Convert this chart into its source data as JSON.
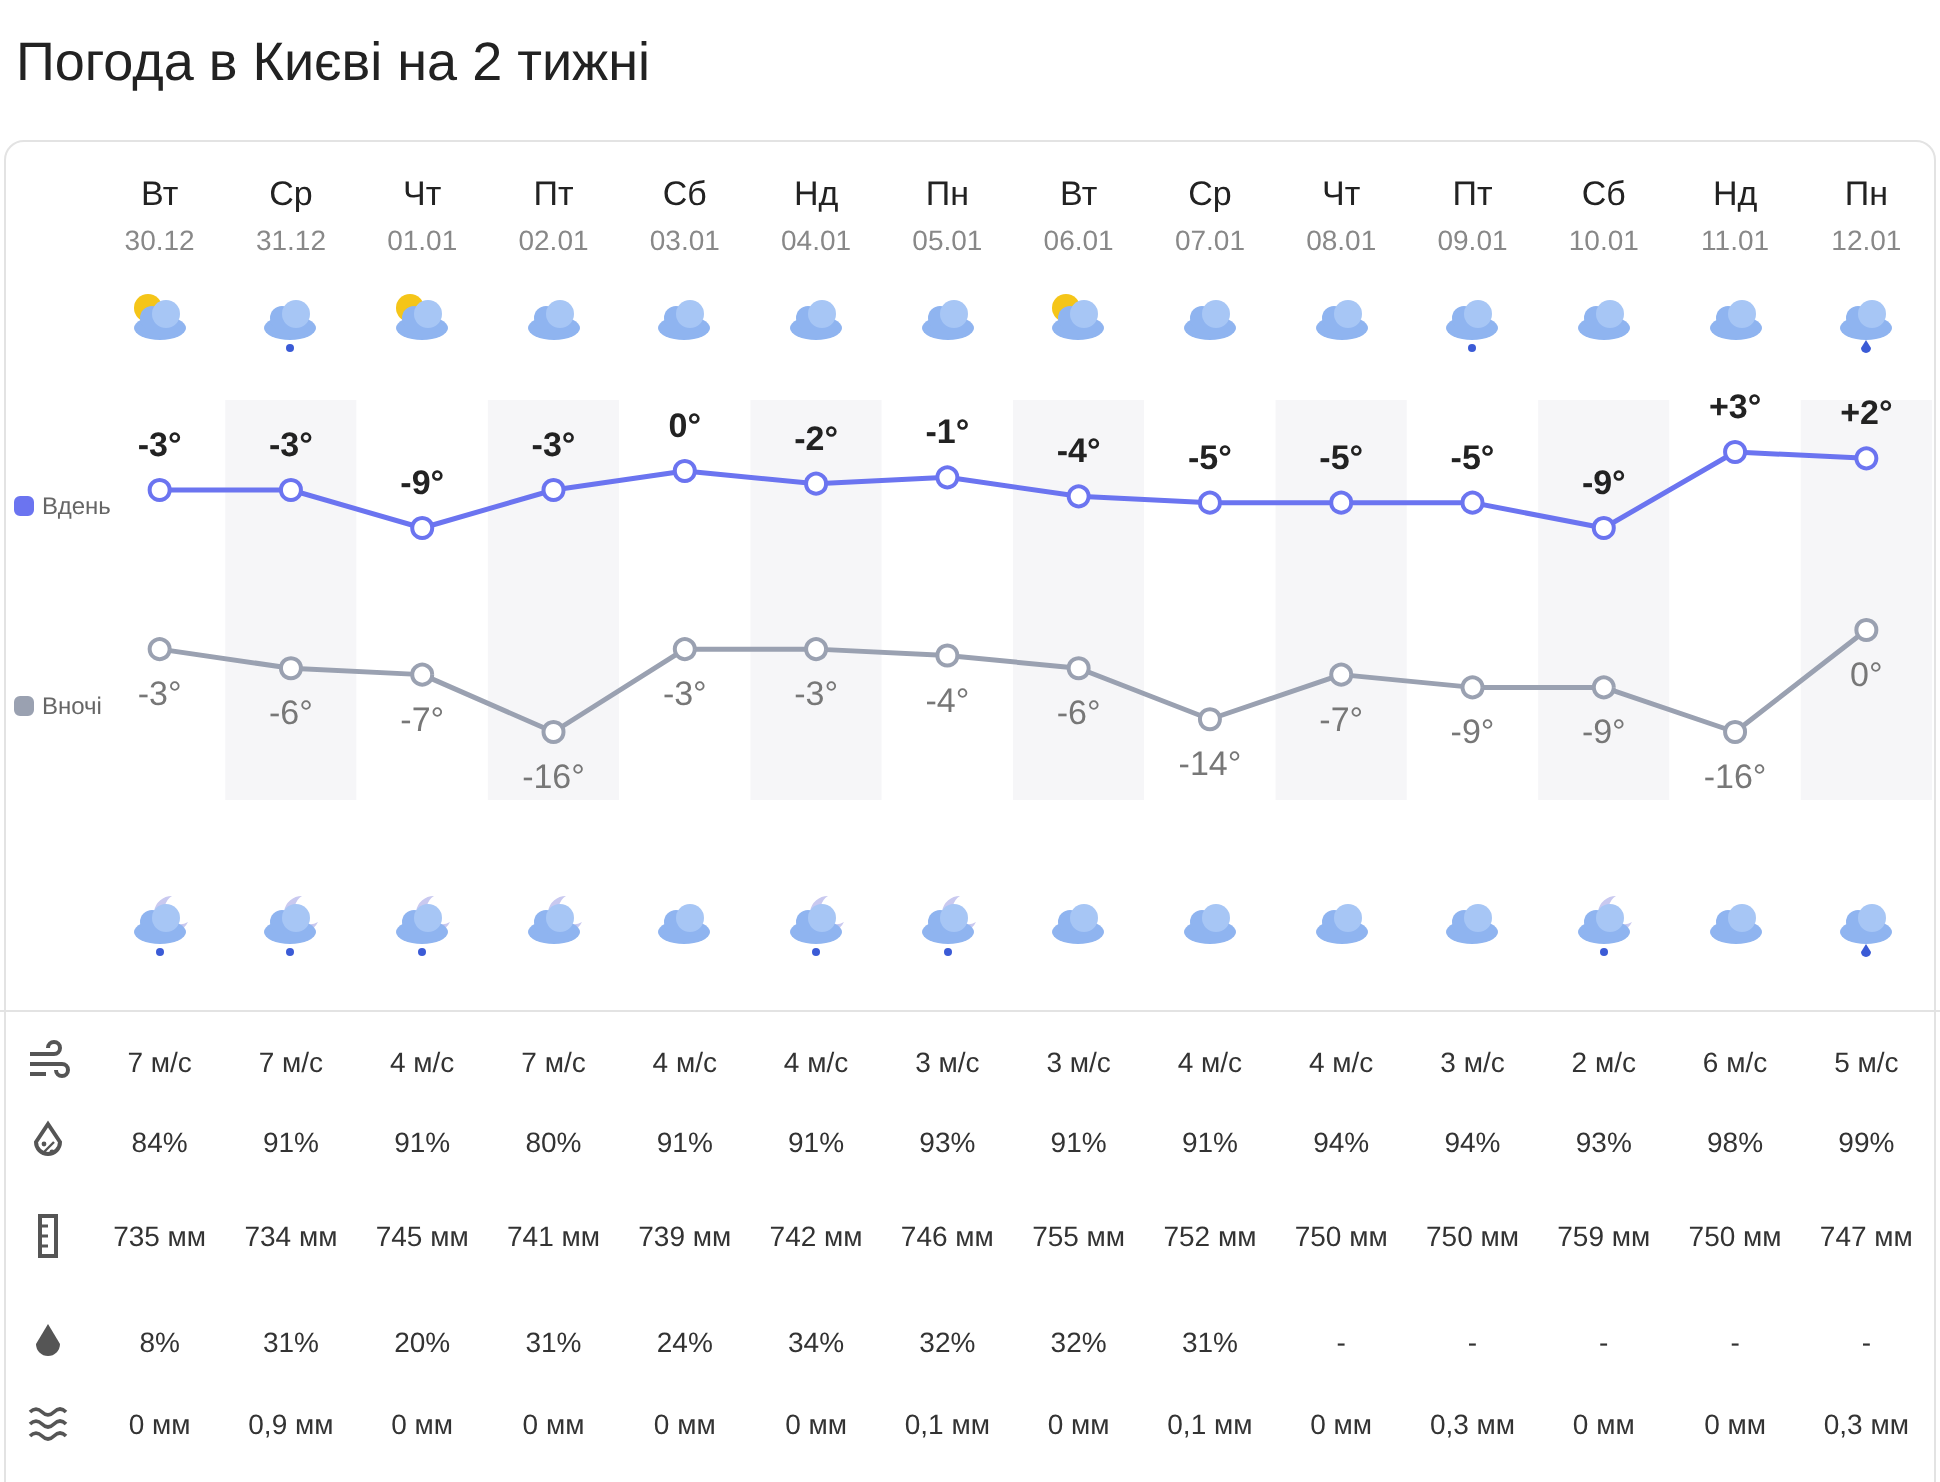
{
  "chart_data": [
    {
      "type": "line",
      "title": "Погода в Києві на 2 тижні",
      "categories": [
        "Вт\n30.12",
        "Ср\n31.12",
        "Чт\n01.01",
        "Пт\n02.01",
        "Сб\n03.01",
        "Нд\n04.01",
        "Пн\n05.01",
        "Вт\n06.01",
        "Ср\n07.01",
        "Чт\n08.01",
        "Пт\n09.01",
        "Сб\n10.01",
        "Нд\n11.01",
        "Пн\n12.01"
      ],
      "series": [
        {
          "name": "Вдень",
          "color": "#6b74f0",
          "values": [
            -3,
            -3,
            -9,
            -3,
            0,
            -2,
            -1,
            -4,
            -5,
            -5,
            -5,
            -9,
            3,
            2
          ],
          "value_labels": [
            "-3°",
            "-3°",
            "-9°",
            "-3°",
            "0°",
            "-2°",
            "-1°",
            "-4°",
            "-5°",
            "-5°",
            "-5°",
            "-9°",
            "+3°",
            "+2°"
          ]
        }
      ],
      "tick_labels": "x",
      "legend": "left",
      "marker": "circle"
    },
    {
      "type": "line",
      "categories": [
        null,
        null,
        null,
        null,
        null,
        null,
        null,
        null,
        null,
        null,
        null,
        null,
        null,
        null
      ],
      "series": [
        {
          "name": "Вночі",
          "color": "#9aa1b1",
          "values": [
            -3,
            -6,
            -7,
            -16,
            -3,
            -3,
            -4,
            -6,
            -14,
            -7,
            -9,
            -9,
            -16,
            0
          ],
          "value_labels": [
            "-3°",
            "-6°",
            "-7°",
            "-16°",
            "-3°",
            "-3°",
            "-4°",
            "-6°",
            "-14°",
            "-7°",
            "-9°",
            "-9°",
            "-16°",
            "0°"
          ]
        }
      ],
      "tick_labels": false,
      "legend": "left",
      "marker": "circle",
      "annotations": [
        "7 м/с",
        "7 м/с",
        "4 м/с",
        "7 м/с",
        "4 м/с",
        "4 м/с",
        "3 м/с",
        "3 м/с",
        "4 м/с",
        "4 м/с",
        "3 м/с",
        "2 м/с",
        "6 м/с",
        "5 м/с",
        "84%",
        "91%",
        "91%",
        "80%",
        "91%",
        "91%",
        "93%",
        "91%",
        "91%",
        "94%",
        "94%",
        "93%",
        "98%",
        "99%",
        "735 мм",
        "734 мм",
        "745 мм",
        "741 мм",
        "739 мм",
        "742 мм",
        "746 мм",
        "755 мм",
        "752 мм",
        "750 мм",
        "750 мм",
        "759 мм",
        "750 мм",
        "747 мм",
        "8%",
        "31%",
        "20%",
        "31%",
        "24%",
        "34%",
        "32%",
        "32%",
        "31%",
        "-",
        "-",
        "-",
        "-",
        "-",
        "0 мм",
        "0,9 мм",
        "0 мм",
        "0 мм",
        "0 мм",
        "0 мм",
        "0,1 мм",
        "0 мм",
        "0,1 мм",
        "0 мм",
        "0,3 мм",
        "0 мм",
        "0 мм",
        "0,3 мм"
      ]
    }
  ]
}
